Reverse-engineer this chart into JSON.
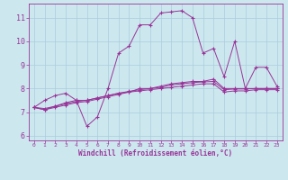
{
  "xlabel": "Windchill (Refroidissement éolien,°C)",
  "background_color": "#cce8ee",
  "line_color": "#993399",
  "grid_color": "#aaccdd",
  "xlim": [
    -0.5,
    23.5
  ],
  "ylim": [
    5.8,
    11.6
  ],
  "yticks": [
    6,
    7,
    8,
    9,
    10,
    11
  ],
  "xticks": [
    0,
    1,
    2,
    3,
    4,
    5,
    6,
    7,
    8,
    9,
    10,
    11,
    12,
    13,
    14,
    15,
    16,
    17,
    18,
    19,
    20,
    21,
    22,
    23
  ],
  "series": [
    [
      7.2,
      7.5,
      7.7,
      7.8,
      7.5,
      6.4,
      6.8,
      8.0,
      9.5,
      9.8,
      10.7,
      10.7,
      11.2,
      11.25,
      11.3,
      11.0,
      9.5,
      9.7,
      8.5,
      10.0,
      8.0,
      8.9,
      8.9,
      8.1
    ],
    [
      7.2,
      7.1,
      7.25,
      7.4,
      7.5,
      7.5,
      7.6,
      7.7,
      7.8,
      7.85,
      8.0,
      8.0,
      8.1,
      8.2,
      8.25,
      8.3,
      8.3,
      8.4,
      8.0,
      8.0,
      8.0,
      8.0,
      8.0,
      8.0
    ],
    [
      7.2,
      7.1,
      7.2,
      7.3,
      7.4,
      7.45,
      7.55,
      7.65,
      7.75,
      7.85,
      7.9,
      7.95,
      8.0,
      8.05,
      8.1,
      8.15,
      8.2,
      8.2,
      7.85,
      7.9,
      7.9,
      7.95,
      7.95,
      7.95
    ],
    [
      7.2,
      7.15,
      7.25,
      7.35,
      7.45,
      7.5,
      7.6,
      7.7,
      7.8,
      7.88,
      7.95,
      8.0,
      8.05,
      8.15,
      8.2,
      8.25,
      8.28,
      8.3,
      7.95,
      7.98,
      7.98,
      8.0,
      8.0,
      8.0
    ]
  ],
  "xlabel_fontsize": 5.5,
  "xtick_fontsize": 4.5,
  "ytick_fontsize": 6.0
}
